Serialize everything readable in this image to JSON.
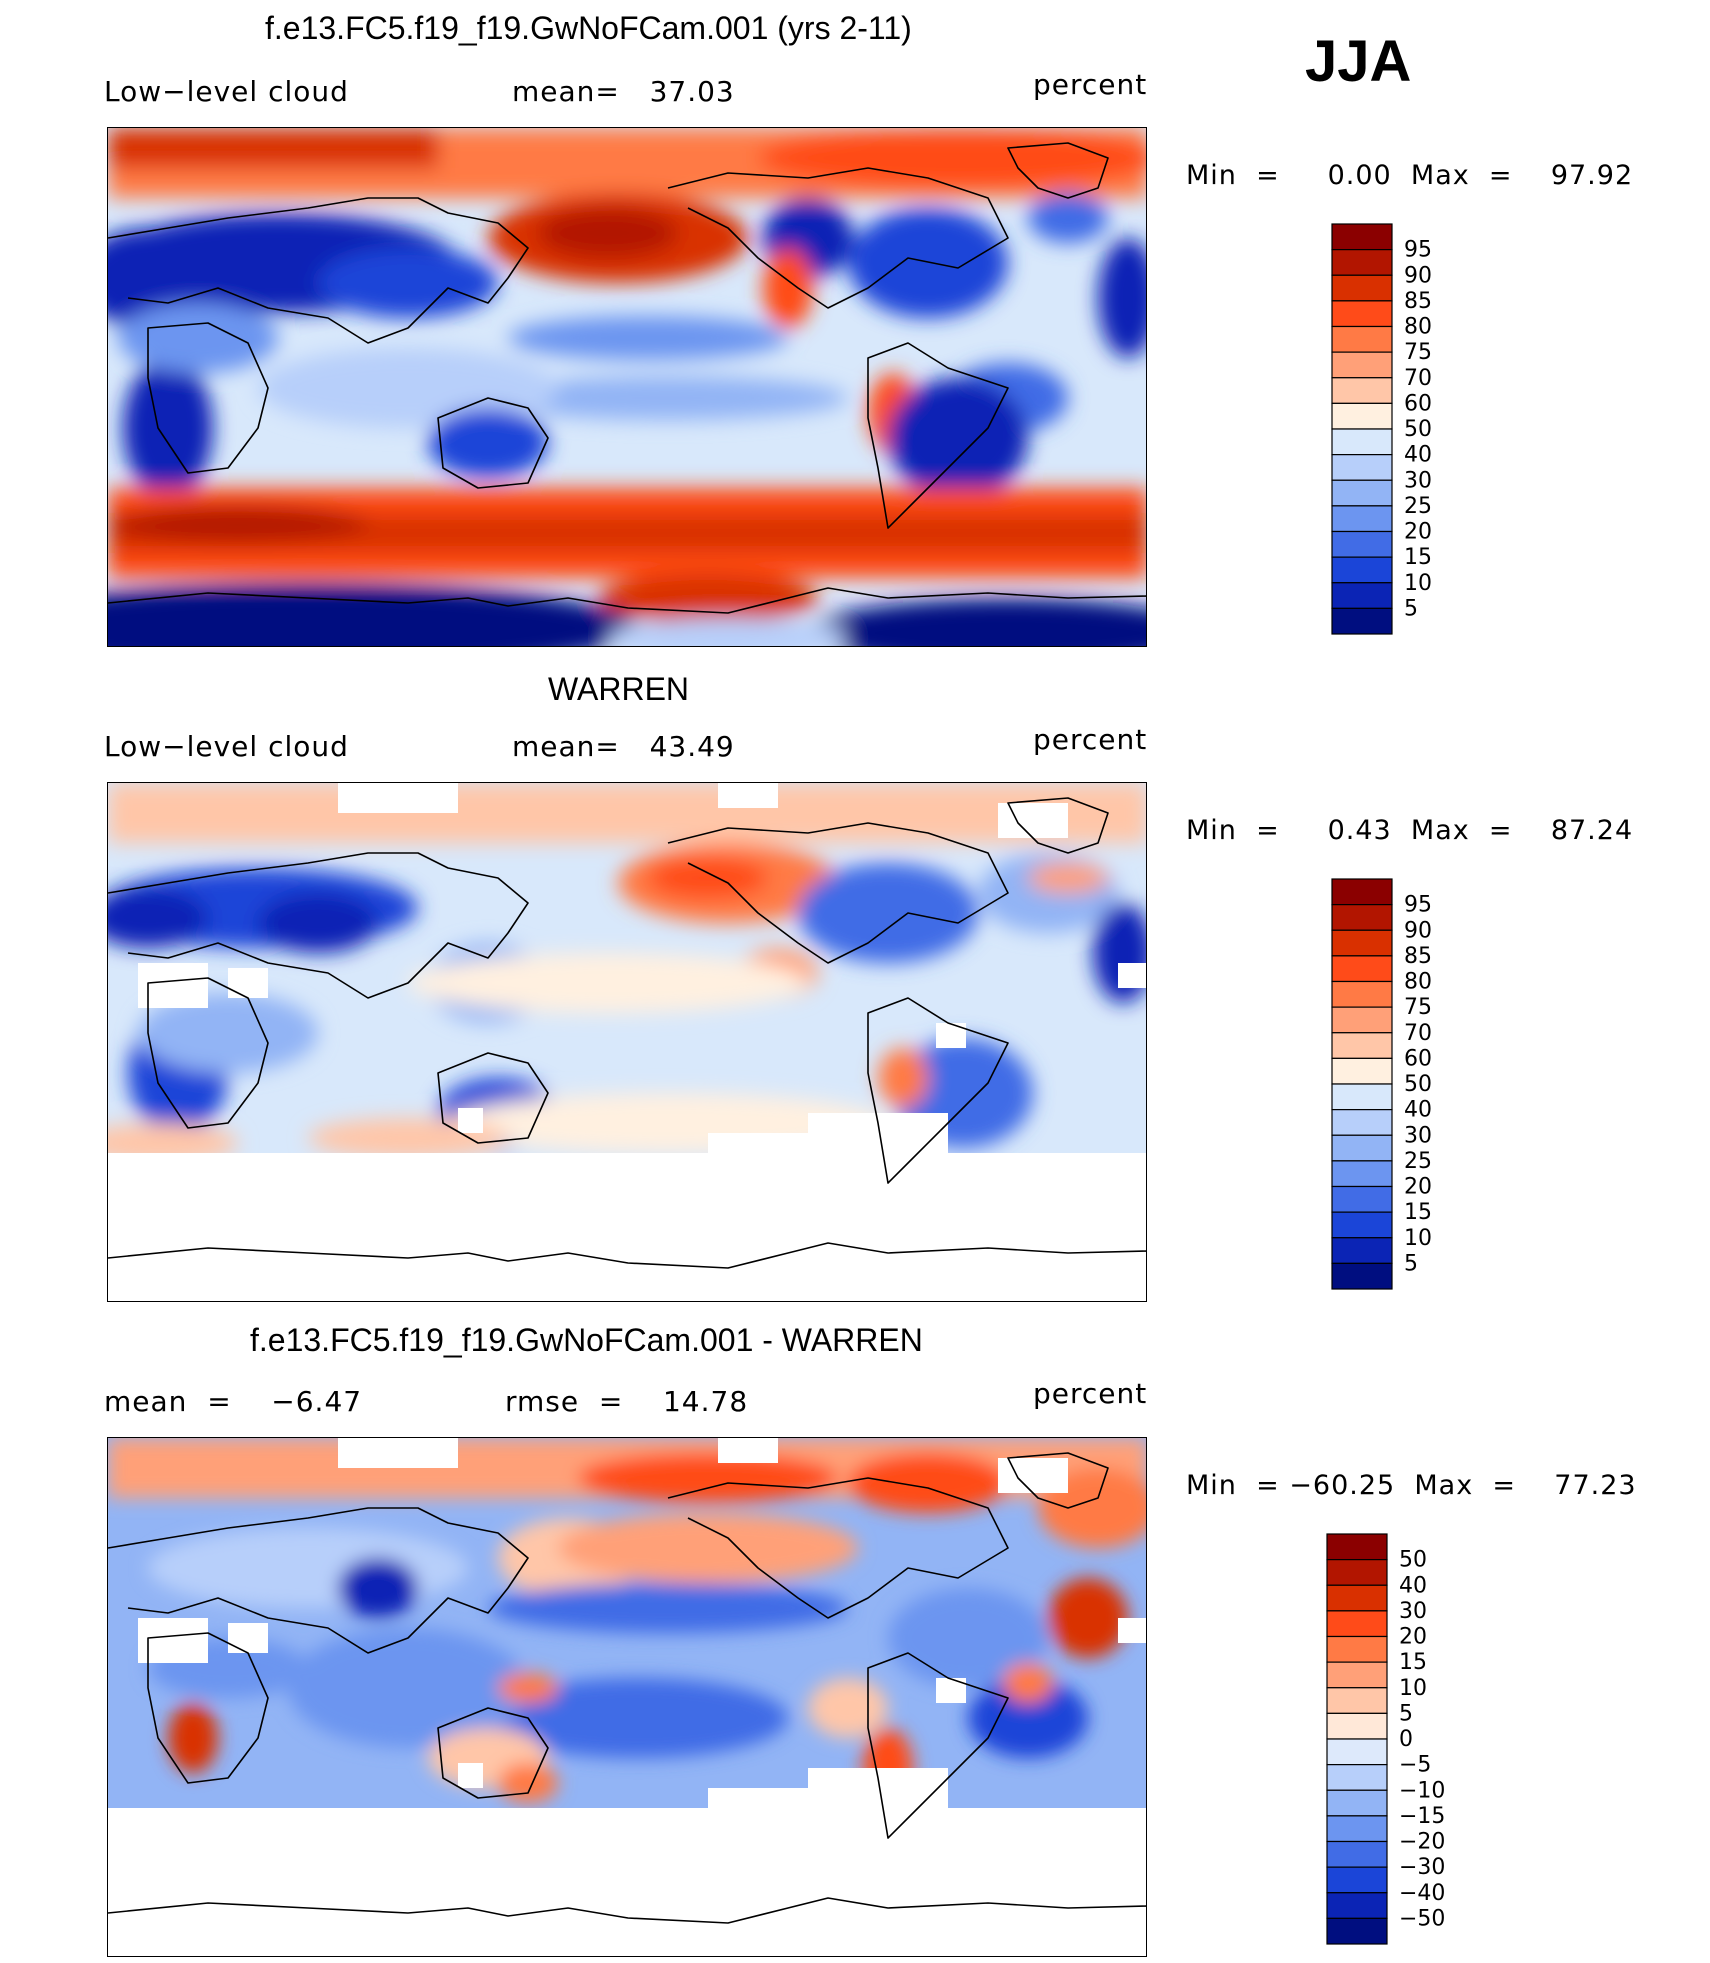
{
  "season": "JJA",
  "chart_data": [
    {
      "type": "heatmap",
      "title": "f.e13.FC5.f19_f19.GwNoFCam.001 (yrs 2-11)",
      "left_label": "Low−level cloud",
      "center_label": "mean=   37.03",
      "units": "percent",
      "variable": "Low-level cloud",
      "mean": 37.03,
      "min": 0.0,
      "max": 97.92,
      "minmax_text": "Min  =     0.00  Max  =    97.92",
      "levels": [
        "95",
        "90",
        "85",
        "80",
        "75",
        "70",
        "60",
        "50",
        "40",
        "30",
        "25",
        "20",
        "15",
        "10",
        "5"
      ],
      "colors": [
        "#8b0000",
        "#b21500",
        "#d93000",
        "#ff4b19",
        "#ff7a45",
        "#ffa078",
        "#ffc6a8",
        "#fff0e0",
        "#d8e8fb",
        "#b7cffa",
        "#92b4f5",
        "#6c95f0",
        "#416ce6",
        "#1b45d8",
        "#0b24b5",
        "#000e80"
      ],
      "regions": {
        "north_polar_cloud": "high",
        "north_pacific": "very high",
        "southern_ocean": "very high",
        "subtropical_oceans": "low",
        "deserts_and_continents": "very low",
        "antarctica": "very low"
      }
    },
    {
      "type": "heatmap",
      "title": "WARREN",
      "left_label": "Low−level cloud",
      "center_label": "mean=   43.49",
      "units": "percent",
      "variable": "Low-level cloud",
      "mean": 43.49,
      "min": 0.43,
      "max": 87.24,
      "minmax_text": "Min  =     0.43  Max  =    87.24",
      "levels": [
        "95",
        "90",
        "85",
        "80",
        "75",
        "70",
        "60",
        "50",
        "40",
        "30",
        "25",
        "20",
        "15",
        "10",
        "5"
      ],
      "colors": [
        "#8b0000",
        "#b21500",
        "#d93000",
        "#ff4b19",
        "#ff7a45",
        "#ffa078",
        "#ffc6a8",
        "#fff0e0",
        "#d8e8fb",
        "#b7cffa",
        "#92b4f5",
        "#6c95f0",
        "#416ce6",
        "#1b45d8",
        "#0b24b5",
        "#000e80"
      ],
      "regions": {
        "north_pacific": "high",
        "subtropical_oceans": "moderate",
        "deserts_and_continents": "low",
        "south_of_50S": "missing"
      }
    },
    {
      "type": "heatmap",
      "title": "f.e13.FC5.f19_f19.GwNoFCam.001 - WARREN",
      "left_label": "mean  =    −6.47",
      "center_label": "rmse  =    14.78",
      "units": "percent",
      "variable": "Low-level cloud difference",
      "mean": -6.47,
      "rmse": 14.78,
      "min": -60.25,
      "max": 77.23,
      "minmax_text": "Min  = −60.25  Max  =    77.23",
      "levels": [
        "50",
        "40",
        "30",
        "20",
        "15",
        "10",
        "5",
        "0",
        "−5",
        "−10",
        "−15",
        "−20",
        "−30",
        "−40",
        "−50"
      ],
      "colors": [
        "#8b0000",
        "#b21500",
        "#d93000",
        "#ff4b19",
        "#ff7a45",
        "#ffa078",
        "#ffc6a8",
        "#ffe8d8",
        "#dde9fb",
        "#b7cffa",
        "#92b4f5",
        "#6c95f0",
        "#416ce6",
        "#1b45d8",
        "#0b24b5",
        "#000e80"
      ],
      "regions": {
        "north_pacific_and_arctic": "positive",
        "tropical_and_subtropical_oceans": "negative",
        "southern_africa": "positive",
        "south_of_50S": "missing"
      }
    }
  ]
}
